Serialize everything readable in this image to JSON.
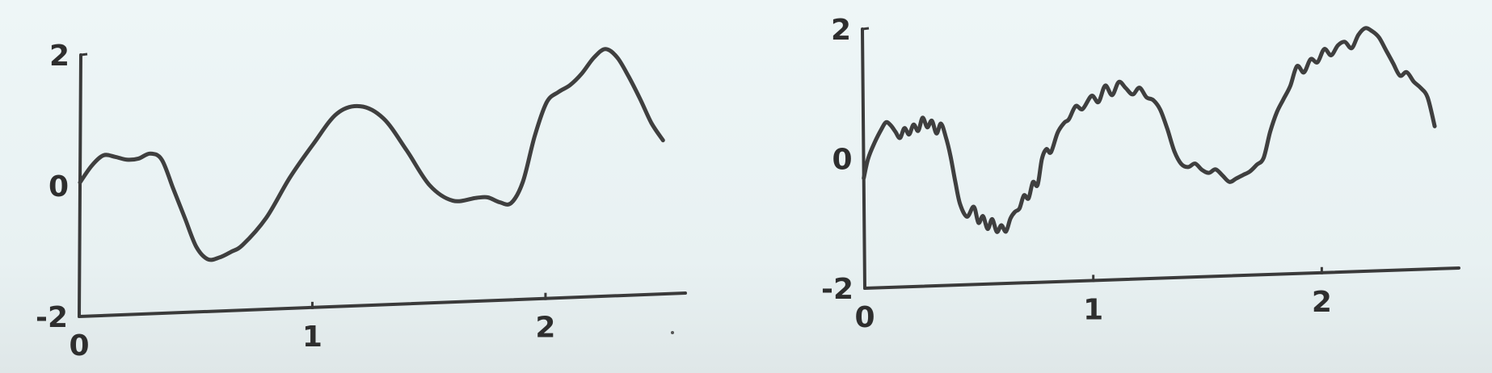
{
  "chart_data": [
    {
      "type": "line",
      "title": "",
      "xlabel": "",
      "ylabel": "",
      "xlim": [
        0,
        2.6
      ],
      "ylim": [
        -2,
        2
      ],
      "x_ticks": [
        0,
        1,
        2
      ],
      "x_tick_labels": [
        "0",
        "1",
        "2"
      ],
      "y_ticks": [
        -2,
        0,
        2
      ],
      "y_tick_labels": [
        "-2",
        "0",
        "2"
      ],
      "grid": false,
      "series": [
        {
          "x": [
            0,
            0.05,
            0.1,
            0.15,
            0.2,
            0.25,
            0.3,
            0.35,
            0.4,
            0.45,
            0.5,
            0.55,
            0.6,
            0.65,
            0.7,
            0.8,
            0.9,
            1.0,
            1.1,
            1.2,
            1.3,
            1.4,
            1.5,
            1.6,
            1.7,
            1.75,
            1.8,
            1.85,
            1.9,
            1.95,
            2.0,
            2.05,
            2.1,
            2.15,
            2.2,
            2.25,
            2.3,
            2.35,
            2.4,
            2.45,
            2.5
          ],
          "y": [
            0.05,
            0.3,
            0.45,
            0.42,
            0.37,
            0.38,
            0.45,
            0.35,
            -0.1,
            -0.55,
            -1.0,
            -1.2,
            -1.18,
            -1.1,
            -1.0,
            -0.6,
            0.0,
            0.5,
            0.95,
            1.05,
            0.85,
            0.35,
            -0.2,
            -0.45,
            -0.42,
            -0.42,
            -0.5,
            -0.52,
            -0.2,
            0.5,
            1.0,
            1.15,
            1.25,
            1.42,
            1.65,
            1.78,
            1.65,
            1.35,
            1.0,
            0.62,
            0.35
          ]
        }
      ]
    },
    {
      "type": "line",
      "title": "",
      "xlabel": "",
      "ylabel": "",
      "xlim": [
        0,
        2.6
      ],
      "ylim": [
        -2,
        2
      ],
      "x_ticks": [
        0,
        1,
        2
      ],
      "x_tick_labels": [
        "0",
        "1",
        "2"
      ],
      "y_ticks": [
        -2,
        0,
        2
      ],
      "y_tick_labels": [
        "-2",
        "0",
        "2"
      ],
      "grid": false,
      "series": [
        {
          "x": [
            0,
            0.02,
            0.05,
            0.08,
            0.1,
            0.12,
            0.14,
            0.16,
            0.18,
            0.2,
            0.22,
            0.24,
            0.26,
            0.28,
            0.3,
            0.32,
            0.34,
            0.36,
            0.38,
            0.4,
            0.42,
            0.45,
            0.48,
            0.5,
            0.52,
            0.54,
            0.56,
            0.58,
            0.6,
            0.62,
            0.64,
            0.66,
            0.68,
            0.7,
            0.72,
            0.74,
            0.76,
            0.78,
            0.8,
            0.82,
            0.85,
            0.88,
            0.9,
            0.93,
            0.96,
            1.0,
            1.03,
            1.06,
            1.09,
            1.12,
            1.15,
            1.18,
            1.21,
            1.24,
            1.27,
            1.3,
            1.33,
            1.36,
            1.39,
            1.42,
            1.45,
            1.48,
            1.51,
            1.54,
            1.57,
            1.6,
            1.63,
            1.66,
            1.69,
            1.72,
            1.75,
            1.78,
            1.81,
            1.84,
            1.87,
            1.9,
            1.93,
            1.96,
            1.99,
            2.02,
            2.05,
            2.08,
            2.11,
            2.14,
            2.17,
            2.2,
            2.23,
            2.26,
            2.29,
            2.32,
            2.35,
            2.38,
            2.41,
            2.44,
            2.47,
            2.5
          ],
          "y": [
            -0.3,
            0.0,
            0.25,
            0.45,
            0.55,
            0.5,
            0.4,
            0.3,
            0.45,
            0.35,
            0.5,
            0.4,
            0.6,
            0.45,
            0.55,
            0.35,
            0.5,
            0.3,
            0.0,
            -0.4,
            -0.75,
            -0.95,
            -0.8,
            -1.05,
            -0.95,
            -1.15,
            -1.0,
            -1.2,
            -1.1,
            -1.2,
            -1.0,
            -0.9,
            -0.85,
            -0.65,
            -0.7,
            -0.45,
            -0.5,
            -0.1,
            0.05,
            0.0,
            0.3,
            0.45,
            0.5,
            0.7,
            0.65,
            0.85,
            0.75,
            1.0,
            0.85,
            1.05,
            0.95,
            0.85,
            0.95,
            0.8,
            0.75,
            0.6,
            0.3,
            -0.05,
            -0.25,
            -0.3,
            -0.25,
            -0.35,
            -0.4,
            -0.35,
            -0.45,
            -0.55,
            -0.5,
            -0.45,
            -0.4,
            -0.3,
            -0.2,
            0.2,
            0.5,
            0.7,
            0.9,
            1.2,
            1.1,
            1.3,
            1.25,
            1.45,
            1.35,
            1.5,
            1.55,
            1.45,
            1.65,
            1.75,
            1.7,
            1.6,
            1.4,
            1.2,
            1.0,
            1.05,
            0.9,
            0.8,
            0.65,
            0.2
          ]
        }
      ]
    }
  ]
}
